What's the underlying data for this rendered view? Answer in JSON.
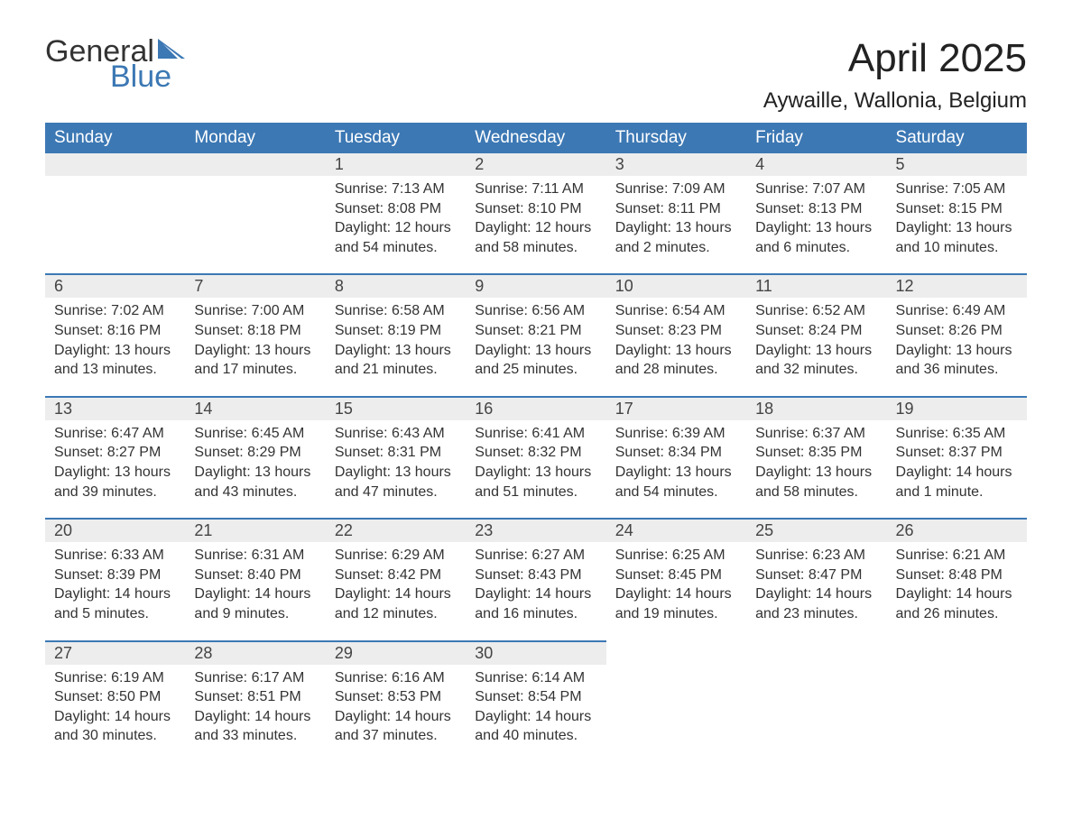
{
  "brand": {
    "word1": "General",
    "word2": "Blue",
    "logo_color": "#3c78b4",
    "text_color": "#333333"
  },
  "header": {
    "month_title": "April 2025",
    "location": "Aywaille, Wallonia, Belgium"
  },
  "style": {
    "header_bg": "#3c78b4",
    "header_fg": "#ffffff",
    "daynum_bg": "#ededed",
    "row_divider": "#3c78b4",
    "body_text": "#333333",
    "page_bg": "#ffffff",
    "th_fontsize": 19,
    "daynum_fontsize": 18,
    "cell_fontsize": 16,
    "title_fontsize": 44,
    "location_fontsize": 24
  },
  "weekdays": [
    "Sunday",
    "Monday",
    "Tuesday",
    "Wednesday",
    "Thursday",
    "Friday",
    "Saturday"
  ],
  "weeks": [
    [
      null,
      null,
      {
        "n": "1",
        "sunrise": "Sunrise: 7:13 AM",
        "sunset": "Sunset: 8:08 PM",
        "day1": "Daylight: 12 hours",
        "day2": "and 54 minutes."
      },
      {
        "n": "2",
        "sunrise": "Sunrise: 7:11 AM",
        "sunset": "Sunset: 8:10 PM",
        "day1": "Daylight: 12 hours",
        "day2": "and 58 minutes."
      },
      {
        "n": "3",
        "sunrise": "Sunrise: 7:09 AM",
        "sunset": "Sunset: 8:11 PM",
        "day1": "Daylight: 13 hours",
        "day2": "and 2 minutes."
      },
      {
        "n": "4",
        "sunrise": "Sunrise: 7:07 AM",
        "sunset": "Sunset: 8:13 PM",
        "day1": "Daylight: 13 hours",
        "day2": "and 6 minutes."
      },
      {
        "n": "5",
        "sunrise": "Sunrise: 7:05 AM",
        "sunset": "Sunset: 8:15 PM",
        "day1": "Daylight: 13 hours",
        "day2": "and 10 minutes."
      }
    ],
    [
      {
        "n": "6",
        "sunrise": "Sunrise: 7:02 AM",
        "sunset": "Sunset: 8:16 PM",
        "day1": "Daylight: 13 hours",
        "day2": "and 13 minutes."
      },
      {
        "n": "7",
        "sunrise": "Sunrise: 7:00 AM",
        "sunset": "Sunset: 8:18 PM",
        "day1": "Daylight: 13 hours",
        "day2": "and 17 minutes."
      },
      {
        "n": "8",
        "sunrise": "Sunrise: 6:58 AM",
        "sunset": "Sunset: 8:19 PM",
        "day1": "Daylight: 13 hours",
        "day2": "and 21 minutes."
      },
      {
        "n": "9",
        "sunrise": "Sunrise: 6:56 AM",
        "sunset": "Sunset: 8:21 PM",
        "day1": "Daylight: 13 hours",
        "day2": "and 25 minutes."
      },
      {
        "n": "10",
        "sunrise": "Sunrise: 6:54 AM",
        "sunset": "Sunset: 8:23 PM",
        "day1": "Daylight: 13 hours",
        "day2": "and 28 minutes."
      },
      {
        "n": "11",
        "sunrise": "Sunrise: 6:52 AM",
        "sunset": "Sunset: 8:24 PM",
        "day1": "Daylight: 13 hours",
        "day2": "and 32 minutes."
      },
      {
        "n": "12",
        "sunrise": "Sunrise: 6:49 AM",
        "sunset": "Sunset: 8:26 PM",
        "day1": "Daylight: 13 hours",
        "day2": "and 36 minutes."
      }
    ],
    [
      {
        "n": "13",
        "sunrise": "Sunrise: 6:47 AM",
        "sunset": "Sunset: 8:27 PM",
        "day1": "Daylight: 13 hours",
        "day2": "and 39 minutes."
      },
      {
        "n": "14",
        "sunrise": "Sunrise: 6:45 AM",
        "sunset": "Sunset: 8:29 PM",
        "day1": "Daylight: 13 hours",
        "day2": "and 43 minutes."
      },
      {
        "n": "15",
        "sunrise": "Sunrise: 6:43 AM",
        "sunset": "Sunset: 8:31 PM",
        "day1": "Daylight: 13 hours",
        "day2": "and 47 minutes."
      },
      {
        "n": "16",
        "sunrise": "Sunrise: 6:41 AM",
        "sunset": "Sunset: 8:32 PM",
        "day1": "Daylight: 13 hours",
        "day2": "and 51 minutes."
      },
      {
        "n": "17",
        "sunrise": "Sunrise: 6:39 AM",
        "sunset": "Sunset: 8:34 PM",
        "day1": "Daylight: 13 hours",
        "day2": "and 54 minutes."
      },
      {
        "n": "18",
        "sunrise": "Sunrise: 6:37 AM",
        "sunset": "Sunset: 8:35 PM",
        "day1": "Daylight: 13 hours",
        "day2": "and 58 minutes."
      },
      {
        "n": "19",
        "sunrise": "Sunrise: 6:35 AM",
        "sunset": "Sunset: 8:37 PM",
        "day1": "Daylight: 14 hours",
        "day2": "and 1 minute."
      }
    ],
    [
      {
        "n": "20",
        "sunrise": "Sunrise: 6:33 AM",
        "sunset": "Sunset: 8:39 PM",
        "day1": "Daylight: 14 hours",
        "day2": "and 5 minutes."
      },
      {
        "n": "21",
        "sunrise": "Sunrise: 6:31 AM",
        "sunset": "Sunset: 8:40 PM",
        "day1": "Daylight: 14 hours",
        "day2": "and 9 minutes."
      },
      {
        "n": "22",
        "sunrise": "Sunrise: 6:29 AM",
        "sunset": "Sunset: 8:42 PM",
        "day1": "Daylight: 14 hours",
        "day2": "and 12 minutes."
      },
      {
        "n": "23",
        "sunrise": "Sunrise: 6:27 AM",
        "sunset": "Sunset: 8:43 PM",
        "day1": "Daylight: 14 hours",
        "day2": "and 16 minutes."
      },
      {
        "n": "24",
        "sunrise": "Sunrise: 6:25 AM",
        "sunset": "Sunset: 8:45 PM",
        "day1": "Daylight: 14 hours",
        "day2": "and 19 minutes."
      },
      {
        "n": "25",
        "sunrise": "Sunrise: 6:23 AM",
        "sunset": "Sunset: 8:47 PM",
        "day1": "Daylight: 14 hours",
        "day2": "and 23 minutes."
      },
      {
        "n": "26",
        "sunrise": "Sunrise: 6:21 AM",
        "sunset": "Sunset: 8:48 PM",
        "day1": "Daylight: 14 hours",
        "day2": "and 26 minutes."
      }
    ],
    [
      {
        "n": "27",
        "sunrise": "Sunrise: 6:19 AM",
        "sunset": "Sunset: 8:50 PM",
        "day1": "Daylight: 14 hours",
        "day2": "and 30 minutes."
      },
      {
        "n": "28",
        "sunrise": "Sunrise: 6:17 AM",
        "sunset": "Sunset: 8:51 PM",
        "day1": "Daylight: 14 hours",
        "day2": "and 33 minutes."
      },
      {
        "n": "29",
        "sunrise": "Sunrise: 6:16 AM",
        "sunset": "Sunset: 8:53 PM",
        "day1": "Daylight: 14 hours",
        "day2": "and 37 minutes."
      },
      {
        "n": "30",
        "sunrise": "Sunrise: 6:14 AM",
        "sunset": "Sunset: 8:54 PM",
        "day1": "Daylight: 14 hours",
        "day2": "and 40 minutes."
      },
      null,
      null,
      null
    ]
  ]
}
